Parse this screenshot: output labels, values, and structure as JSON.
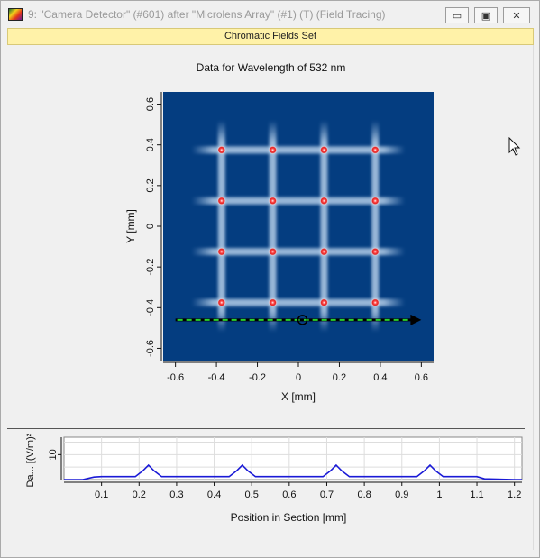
{
  "window": {
    "title": "9: \"Camera Detector\" (#601) after \"Microlens Array\" (#1) (T) (Field Tracing)",
    "minimize_glyph": "▭",
    "maximize_glyph": "▣",
    "close_glyph": "✕"
  },
  "banner": {
    "label": "Chromatic Fields Set"
  },
  "main_plot": {
    "title": "Data for Wavelength of 532 nm",
    "x_label": "X [mm]",
    "y_label": "Y [mm]",
    "x_ticks": [
      "-0.6",
      "-0.4",
      "-0.2",
      "0",
      "0.2",
      "0.4",
      "0.6"
    ],
    "y_ticks": [
      "0.6",
      "0.4",
      "0.2",
      "0",
      "-0.2",
      "-0.4",
      "-0.6"
    ],
    "spot_x": [
      -0.375,
      -0.125,
      0.125,
      0.375
    ],
    "spot_y": [
      0.375,
      0.125,
      -0.125,
      -0.375
    ],
    "section_line": {
      "from": [
        -0.6,
        -0.46
      ],
      "to": [
        0.6,
        -0.46
      ],
      "marker": [
        0.02,
        -0.46
      ]
    },
    "colors": {
      "background": "#043d80",
      "spot": "#e02020",
      "section_line": "#2bd12b"
    }
  },
  "section_plot": {
    "x_label": "Position in Section [mm]",
    "y_label": "Da... [(V/m)²]",
    "x_ticks": [
      "0.1",
      "0.2",
      "0.3",
      "0.4",
      "0.5",
      "0.6",
      "0.7",
      "0.8",
      "0.9",
      "1",
      "1.1",
      "1.2"
    ],
    "y_ticks": [
      "10"
    ],
    "line_color": "#1a1ad6"
  },
  "chart_data": {
    "type": "line",
    "xlabel": "Position in Section [mm]",
    "ylabel": "Da... [(V/m)²]",
    "xlim": [
      0,
      1.22
    ],
    "ylim": [
      0,
      17
    ],
    "grid": true,
    "x": [
      0,
      0.05,
      0.08,
      0.1,
      0.19,
      0.21,
      0.225,
      0.24,
      0.26,
      0.44,
      0.46,
      0.475,
      0.49,
      0.51,
      0.69,
      0.71,
      0.725,
      0.74,
      0.76,
      0.94,
      0.96,
      0.975,
      0.99,
      1.01,
      1.1,
      1.12,
      1.2,
      1.22
    ],
    "series": [
      {
        "values": [
          0,
          0,
          1,
          1.2,
          1.2,
          3.5,
          5.8,
          3.5,
          1.2,
          1.2,
          3.5,
          5.8,
          3.5,
          1.2,
          1.2,
          3.5,
          5.8,
          3.5,
          1.2,
          1.2,
          3.5,
          5.8,
          3.5,
          1.2,
          1.2,
          0.3,
          0,
          0
        ]
      }
    ]
  }
}
